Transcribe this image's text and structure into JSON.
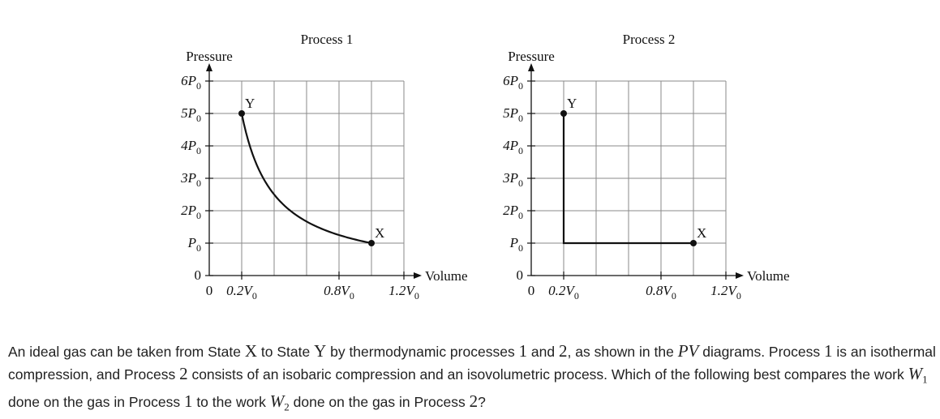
{
  "chart_data": [
    {
      "type": "line",
      "title": "Process 1",
      "ylabel": "Pressure",
      "xlabel": "Volume",
      "y_tick_labels": [
        {
          "value": 0,
          "base": "0",
          "sub": ""
        },
        {
          "value": 1,
          "base": "P",
          "sub": "0"
        },
        {
          "value": 2,
          "base": "2P",
          "sub": "0"
        },
        {
          "value": 3,
          "base": "3P",
          "sub": "0"
        },
        {
          "value": 4,
          "base": "4P",
          "sub": "0"
        },
        {
          "value": 5,
          "base": "5P",
          "sub": "0"
        },
        {
          "value": 6,
          "base": "6P",
          "sub": "0"
        }
      ],
      "x_tick_labels": [
        {
          "value": 0,
          "base": "0",
          "sub": ""
        },
        {
          "value": 0.2,
          "base": "0.2V",
          "sub": "0"
        },
        {
          "value": 0.8,
          "base": "0.8V",
          "sub": "0"
        },
        {
          "value": 1.2,
          "base": "1.2V",
          "sub": "0"
        }
      ],
      "grid": true,
      "points": [
        {
          "label": "Y",
          "x": 0.2,
          "y": 5
        },
        {
          "label": "X",
          "x": 1.0,
          "y": 1
        }
      ],
      "path": {
        "kind": "isotherm",
        "from": "X",
        "to": "Y",
        "pv_constant": 1.0
      }
    },
    {
      "type": "line",
      "title": "Process 2",
      "ylabel": "Pressure",
      "xlabel": "Volume",
      "y_tick_labels": [
        {
          "value": 0,
          "base": "0",
          "sub": ""
        },
        {
          "value": 1,
          "base": "P",
          "sub": "0"
        },
        {
          "value": 2,
          "base": "2P",
          "sub": "0"
        },
        {
          "value": 3,
          "base": "3P",
          "sub": "0"
        },
        {
          "value": 4,
          "base": "4P",
          "sub": "0"
        },
        {
          "value": 5,
          "base": "5P",
          "sub": "0"
        },
        {
          "value": 6,
          "base": "6P",
          "sub": "0"
        }
      ],
      "x_tick_labels": [
        {
          "value": 0,
          "base": "0",
          "sub": ""
        },
        {
          "value": 0.2,
          "base": "0.2V",
          "sub": "0"
        },
        {
          "value": 0.8,
          "base": "0.8V",
          "sub": "0"
        },
        {
          "value": 1.2,
          "base": "1.2V",
          "sub": "0"
        }
      ],
      "grid": true,
      "points": [
        {
          "label": "Y",
          "x": 0.2,
          "y": 5
        },
        {
          "label": "X",
          "x": 1.0,
          "y": 1
        }
      ],
      "path": {
        "kind": "polyline",
        "vertices": [
          [
            1.0,
            1
          ],
          [
            0.2,
            1
          ],
          [
            0.2,
            5
          ]
        ]
      }
    }
  ],
  "question": {
    "seg1": "An ideal gas can be taken from State ",
    "stateX": "X",
    "seg2": " to State ",
    "stateY": "Y",
    "seg3": " by thermodynamic processes ",
    "p1": "1",
    "seg4": " and ",
    "p2": "2",
    "seg5": ", as shown in the ",
    "pv": "PV",
    "seg6": " diagrams. Process ",
    "p1b": "1",
    "seg7": " is an isothermal compression, and Process ",
    "p2b": "2",
    "seg8": " consists of an isobaric compression and an isovolumetric process. Which of the following best compares the work ",
    "w1": "W",
    "w1sub": "1",
    "seg9": " done on the gas in Process ",
    "p1c": "1",
    "seg10": " to the work ",
    "w2": "W",
    "w2sub": "2",
    "seg11": " done on the gas in Process ",
    "p2c": "2",
    "seg12": "?"
  }
}
